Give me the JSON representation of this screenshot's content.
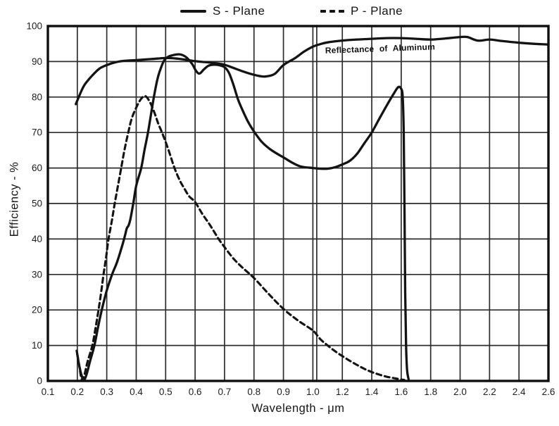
{
  "figure": {
    "background": "#ffffff",
    "ink": "#141414"
  },
  "legend": {
    "items": [
      {
        "label": "S - Plane",
        "style": "solid"
      },
      {
        "label": "P - Plane",
        "style": "dashed"
      }
    ]
  },
  "chart_data": {
    "type": "line",
    "title": "",
    "xlabel": "Wavelength - μm",
    "ylabel": "Efficiency - %",
    "ylim": [
      0,
      100
    ],
    "grid": true,
    "legend_position": "top-center",
    "x_axis_note": "piecewise-linear axis: 0.1 spacing from 0.1 to 1.0, 0.2 spacing from 1.0 to 2.6",
    "x_tick_labels": [
      "0.1",
      "0.2",
      "0.3",
      "0.4",
      "0.5",
      "0.6",
      "0.7",
      "0.8",
      "0.9",
      "1.0",
      "1.2",
      "1.4",
      "1.6",
      "1.8",
      "2.0",
      "2.2",
      "2.4",
      "2.6"
    ],
    "x_tick_values": [
      0.1,
      0.2,
      0.3,
      0.4,
      0.5,
      0.6,
      0.7,
      0.8,
      0.9,
      1.0,
      1.2,
      1.4,
      1.6,
      1.8,
      2.0,
      2.2,
      2.4,
      2.6
    ],
    "y_tick_labels": [
      "0",
      "10",
      "20",
      "30",
      "40",
      "50",
      "60",
      "70",
      "80",
      "90",
      "100"
    ],
    "y_tick_values": [
      0,
      10,
      20,
      30,
      40,
      50,
      60,
      70,
      80,
      90,
      100
    ],
    "doubled_gridline_at_x": 1.0,
    "annotations": [
      {
        "text": "Reflectance of Aluminum",
        "x": 1.084,
        "y": 92.3,
        "rotation": -2
      }
    ],
    "series": [
      {
        "name": "S - Plane",
        "style": "solid",
        "points": [
          [
            0.198,
            8.5
          ],
          [
            0.205,
            5
          ],
          [
            0.213,
            2
          ],
          [
            0.222,
            0.2
          ],
          [
            0.232,
            2
          ],
          [
            0.243,
            5.5
          ],
          [
            0.258,
            10
          ],
          [
            0.27,
            15
          ],
          [
            0.283,
            20
          ],
          [
            0.3,
            25.5
          ],
          [
            0.318,
            30
          ],
          [
            0.335,
            33.5
          ],
          [
            0.352,
            38
          ],
          [
            0.362,
            41
          ],
          [
            0.368,
            43
          ],
          [
            0.374,
            43.8
          ],
          [
            0.38,
            45.5
          ],
          [
            0.39,
            50
          ],
          [
            0.4,
            55
          ],
          [
            0.417,
            60
          ],
          [
            0.428,
            65
          ],
          [
            0.44,
            70
          ],
          [
            0.45,
            75
          ],
          [
            0.46,
            80
          ],
          [
            0.472,
            85
          ],
          [
            0.483,
            88
          ],
          [
            0.495,
            90.3
          ],
          [
            0.51,
            91.4
          ],
          [
            0.53,
            91.9
          ],
          [
            0.55,
            92
          ],
          [
            0.57,
            91.2
          ],
          [
            0.59,
            89.3
          ],
          [
            0.603,
            87.4
          ],
          [
            0.615,
            86.6
          ],
          [
            0.63,
            87.8
          ],
          [
            0.645,
            88.8
          ],
          [
            0.66,
            89.1
          ],
          [
            0.68,
            89
          ],
          [
            0.7,
            88.4
          ],
          [
            0.715,
            86.8
          ],
          [
            0.73,
            83.5
          ],
          [
            0.745,
            79.5
          ],
          [
            0.76,
            76.5
          ],
          [
            0.78,
            73
          ],
          [
            0.8,
            70.3
          ],
          [
            0.825,
            67.5
          ],
          [
            0.85,
            65.6
          ],
          [
            0.875,
            64.2
          ],
          [
            0.9,
            63
          ],
          [
            0.93,
            61.5
          ],
          [
            0.96,
            60.4
          ],
          [
            1.0,
            60
          ],
          [
            1.05,
            59.8
          ],
          [
            1.1,
            59.8
          ],
          [
            1.15,
            60.2
          ],
          [
            1.2,
            61
          ],
          [
            1.25,
            62
          ],
          [
            1.3,
            64
          ],
          [
            1.35,
            67
          ],
          [
            1.4,
            70
          ],
          [
            1.45,
            73.8
          ],
          [
            1.5,
            77.5
          ],
          [
            1.55,
            81
          ],
          [
            1.58,
            82.8
          ],
          [
            1.6,
            82.3
          ],
          [
            1.61,
            80
          ],
          [
            1.617,
            70
          ],
          [
            1.622,
            50
          ],
          [
            1.627,
            25
          ],
          [
            1.633,
            10
          ],
          [
            1.64,
            3
          ],
          [
            1.65,
            0.5
          ]
        ]
      },
      {
        "name": "P - Plane",
        "style": "dashed",
        "points": [
          [
            0.2,
            7.5
          ],
          [
            0.207,
            4
          ],
          [
            0.213,
            1
          ],
          [
            0.218,
            0.2
          ],
          [
            0.225,
            2
          ],
          [
            0.235,
            5.5
          ],
          [
            0.251,
            10
          ],
          [
            0.262,
            15
          ],
          [
            0.272,
            20
          ],
          [
            0.281,
            25
          ],
          [
            0.289,
            30
          ],
          [
            0.298,
            35
          ],
          [
            0.306,
            40
          ],
          [
            0.317,
            45
          ],
          [
            0.327,
            50
          ],
          [
            0.338,
            55
          ],
          [
            0.349,
            60
          ],
          [
            0.36,
            65
          ],
          [
            0.373,
            70
          ],
          [
            0.385,
            74
          ],
          [
            0.4,
            77
          ],
          [
            0.415,
            79.3
          ],
          [
            0.43,
            80.3
          ],
          [
            0.445,
            78.8
          ],
          [
            0.46,
            76
          ],
          [
            0.475,
            72.5
          ],
          [
            0.49,
            69.5
          ],
          [
            0.51,
            65
          ],
          [
            0.53,
            60
          ],
          [
            0.548,
            56.5
          ],
          [
            0.565,
            54
          ],
          [
            0.58,
            52
          ],
          [
            0.6,
            50.4
          ],
          [
            0.625,
            47
          ],
          [
            0.65,
            44
          ],
          [
            0.68,
            40
          ],
          [
            0.7,
            37.7
          ],
          [
            0.73,
            34.5
          ],
          [
            0.76,
            32
          ],
          [
            0.8,
            29
          ],
          [
            0.85,
            24.5
          ],
          [
            0.9,
            20.3
          ],
          [
            0.95,
            17
          ],
          [
            1.0,
            14.2
          ],
          [
            1.05,
            11.8
          ],
          [
            1.1,
            10
          ],
          [
            1.15,
            8.4
          ],
          [
            1.2,
            7
          ],
          [
            1.25,
            5.7
          ],
          [
            1.3,
            4.5
          ],
          [
            1.35,
            3.4
          ],
          [
            1.4,
            2.5
          ],
          [
            1.45,
            1.8
          ],
          [
            1.5,
            1.2
          ],
          [
            1.55,
            0.8
          ],
          [
            1.6,
            0.4
          ],
          [
            1.62,
            0.3
          ]
        ]
      },
      {
        "name": "Reflectance of Aluminum",
        "style": "solid",
        "points": [
          [
            0.195,
            78
          ],
          [
            0.21,
            81
          ],
          [
            0.225,
            83.5
          ],
          [
            0.25,
            86
          ],
          [
            0.275,
            88
          ],
          [
            0.3,
            89
          ],
          [
            0.33,
            89.8
          ],
          [
            0.36,
            90.2
          ],
          [
            0.4,
            90.4
          ],
          [
            0.45,
            90.7
          ],
          [
            0.5,
            91
          ],
          [
            0.53,
            90.9
          ],
          [
            0.57,
            90.5
          ],
          [
            0.6,
            90.1
          ],
          [
            0.64,
            89.8
          ],
          [
            0.68,
            89.4
          ],
          [
            0.7,
            89.1
          ],
          [
            0.73,
            88.2
          ],
          [
            0.76,
            87.3
          ],
          [
            0.79,
            86.5
          ],
          [
            0.82,
            85.9
          ],
          [
            0.84,
            85.8
          ],
          [
            0.87,
            86.5
          ],
          [
            0.9,
            89
          ],
          [
            0.94,
            91
          ],
          [
            0.97,
            92.8
          ],
          [
            1.0,
            94.2
          ],
          [
            1.05,
            94.9
          ],
          [
            1.1,
            95.4
          ],
          [
            1.2,
            95.9
          ],
          [
            1.3,
            96.2
          ],
          [
            1.4,
            96.4
          ],
          [
            1.5,
            96.6
          ],
          [
            1.6,
            96.6
          ],
          [
            1.7,
            96.4
          ],
          [
            1.8,
            96.2
          ],
          [
            1.9,
            96.5
          ],
          [
            2.0,
            96.9
          ],
          [
            2.05,
            96.9
          ],
          [
            2.12,
            95.9
          ],
          [
            2.2,
            96.2
          ],
          [
            2.28,
            95.8
          ],
          [
            2.4,
            95.3
          ],
          [
            2.5,
            95
          ],
          [
            2.6,
            94.8
          ]
        ]
      }
    ]
  }
}
